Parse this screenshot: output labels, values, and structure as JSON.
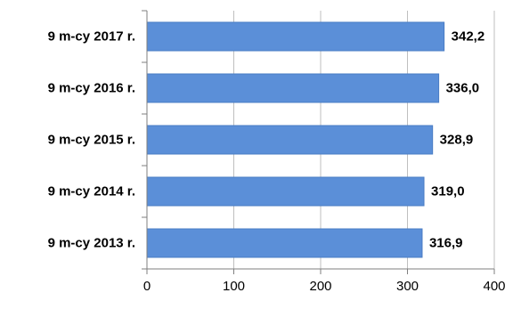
{
  "chart_data": {
    "type": "bar",
    "orientation": "horizontal",
    "categories": [
      "9 m-cy 2017 r.",
      "9 m-cy 2016 r.",
      "9 m-cy 2015 r.",
      "9 m-cy 2014 r.",
      "9 m-cy 2013 r."
    ],
    "values": [
      342.2,
      336.0,
      328.9,
      319.0,
      316.9
    ],
    "value_labels": [
      "342,2",
      "336,0",
      "328,9",
      "319,0",
      "316,9"
    ],
    "xlim": [
      0,
      400
    ],
    "x_ticks": [
      0,
      100,
      200,
      300,
      400
    ],
    "x_tick_labels": [
      "0",
      "100",
      "200",
      "300",
      "400"
    ],
    "grid": "vertical",
    "legend": "none",
    "bar_color": "#5b8fd8",
    "bar_edge_color": "#4a7cc4"
  }
}
